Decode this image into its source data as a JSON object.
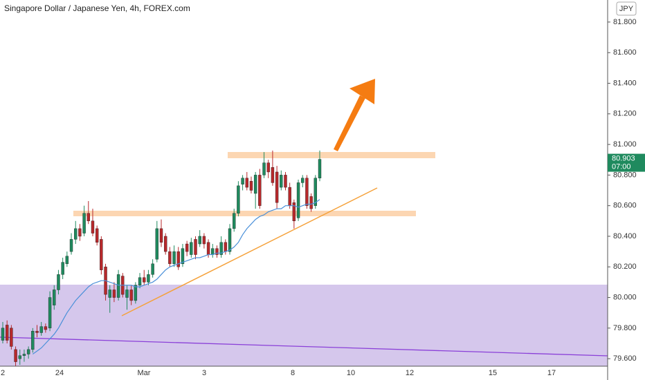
{
  "chart_data": {
    "type": "candlestick",
    "title": "Singapore Dollar / Japanese Yen, 4h, FOREX.com",
    "currency": "JPY",
    "countdown": "07:00",
    "x_labels": [
      "2",
      "24",
      "Mar",
      "3",
      "8",
      "10",
      "12",
      "15",
      "17"
    ],
    "up_color": "#1f8a5e",
    "down_color": "#b8282b",
    "open": [
      79.72,
      79.82,
      79.8,
      79.66,
      79.6,
      79.62,
      79.63,
      79.66,
      79.78,
      79.77,
      79.81,
      79.8,
      79.95,
      80.05,
      80.15,
      80.22,
      80.3,
      80.38,
      80.45,
      80.42,
      80.55,
      80.5,
      80.45,
      80.38,
      80.2,
      80.0,
      80.05,
      80.0,
      80.14,
      80.0,
      80.05,
      79.98,
      80.08,
      80.13,
      80.1,
      80.15,
      80.25,
      80.45,
      80.4,
      80.3,
      80.22,
      80.3,
      80.22,
      80.35,
      80.28,
      80.38,
      80.35,
      80.4,
      80.36,
      80.28,
      80.32,
      80.28,
      80.36,
      80.3,
      80.45,
      80.55,
      80.74,
      80.78,
      80.76,
      80.68,
      80.8,
      80.8,
      80.88,
      80.85,
      80.82,
      80.72,
      80.8,
      80.72,
      80.62,
      80.52,
      80.75,
      80.78,
      80.66,
      80.6,
      80.78
    ],
    "high": [
      79.84,
      79.85,
      79.82,
      79.68,
      79.66,
      79.66,
      79.68,
      79.8,
      79.82,
      79.84,
      79.83,
      80.04,
      80.08,
      80.18,
      80.26,
      80.3,
      80.42,
      80.5,
      80.48,
      80.6,
      80.63,
      80.58,
      80.47,
      80.4,
      80.22,
      80.08,
      80.1,
      80.18,
      80.16,
      80.08,
      80.08,
      80.1,
      80.16,
      80.18,
      80.18,
      80.25,
      80.5,
      80.51,
      80.42,
      80.33,
      80.34,
      80.33,
      80.35,
      80.37,
      80.39,
      80.4,
      80.44,
      80.42,
      80.38,
      80.35,
      80.34,
      80.4,
      80.38,
      80.48,
      80.58,
      80.76,
      80.8,
      80.82,
      80.79,
      80.82,
      80.84,
      80.95,
      80.9,
      80.96,
      80.86,
      80.83,
      80.82,
      80.75,
      80.64,
      80.77,
      80.8,
      80.8,
      80.68,
      80.8,
      80.96
    ],
    "low": [
      79.7,
      79.7,
      79.66,
      79.55,
      79.56,
      79.58,
      79.6,
      79.64,
      79.74,
      79.75,
      79.77,
      79.78,
      79.92,
      80.02,
      80.12,
      80.2,
      80.28,
      80.35,
      80.37,
      80.4,
      80.48,
      80.4,
      80.34,
      80.15,
      79.98,
      79.9,
      79.97,
      79.98,
      80.0,
      79.92,
      79.95,
      79.96,
      80.06,
      80.08,
      80.08,
      80.13,
      80.23,
      80.33,
      80.28,
      80.2,
      80.2,
      80.18,
      80.2,
      80.27,
      80.26,
      80.25,
      80.33,
      80.32,
      80.26,
      80.26,
      80.26,
      80.26,
      80.28,
      80.28,
      80.43,
      80.53,
      80.7,
      80.7,
      80.68,
      80.58,
      80.58,
      80.78,
      80.78,
      80.73,
      80.58,
      80.7,
      80.7,
      80.58,
      80.45,
      80.5,
      80.72,
      80.58,
      80.56,
      80.58,
      80.76
    ],
    "close": [
      79.8,
      79.72,
      79.68,
      79.58,
      79.62,
      79.63,
      79.66,
      79.78,
      79.77,
      79.81,
      79.79,
      80.0,
      80.05,
      80.15,
      80.23,
      80.27,
      80.38,
      80.45,
      80.4,
      80.55,
      80.5,
      80.42,
      80.36,
      80.18,
      80.02,
      80.05,
      80.0,
      80.15,
      80.02,
      80.05,
      79.98,
      80.08,
      80.13,
      80.1,
      80.15,
      80.22,
      80.45,
      80.36,
      80.3,
      80.22,
      80.3,
      80.2,
      80.32,
      80.3,
      80.36,
      80.28,
      80.4,
      80.35,
      80.28,
      80.32,
      80.28,
      80.36,
      80.3,
      80.45,
      80.55,
      80.73,
      80.78,
      80.72,
      80.7,
      80.8,
      80.6,
      80.88,
      80.82,
      80.75,
      80.62,
      80.8,
      80.72,
      80.6,
      80.5,
      80.75,
      80.78,
      80.6,
      80.58,
      80.78,
      80.903
    ],
    "ma": {
      "color": "#4a90d9",
      "values": [
        null,
        null,
        null,
        null,
        null,
        null,
        null,
        79.63,
        79.65,
        79.67,
        79.7,
        79.73,
        79.76,
        79.8,
        79.85,
        79.9,
        79.94,
        79.98,
        80.01,
        80.04,
        80.07,
        80.09,
        80.1,
        80.11,
        80.11,
        80.1,
        80.09,
        80.08,
        80.08,
        80.08,
        80.08,
        80.07,
        80.07,
        80.08,
        80.09,
        80.1,
        80.12,
        80.15,
        80.18,
        80.2,
        80.21,
        80.22,
        80.23,
        80.24,
        80.25,
        80.26,
        80.26,
        80.27,
        80.28,
        80.28,
        80.29,
        80.29,
        80.3,
        80.31,
        80.33,
        80.36,
        80.41,
        80.45,
        80.48,
        80.51,
        80.53,
        80.54,
        80.56,
        80.57,
        80.58,
        80.58,
        80.6,
        80.6,
        80.6,
        80.59,
        80.6,
        80.61,
        80.61,
        80.62,
        80.64
      ]
    },
    "ylim": [
      79.551,
      81.944
    ],
    "yticks": [
      {
        "value": 79.6,
        "label": "79.600"
      },
      {
        "value": 79.8,
        "label": "79.800"
      },
      {
        "value": 80.0,
        "label": "80.000"
      },
      {
        "value": 80.2,
        "label": "80.200"
      },
      {
        "value": 80.4,
        "label": "80.400"
      },
      {
        "value": 80.6,
        "label": "80.600"
      },
      {
        "value": 80.8,
        "label": "80.800"
      },
      {
        "value": 81.0,
        "label": "81.000"
      },
      {
        "value": 81.2,
        "label": "81.200"
      },
      {
        "value": 81.4,
        "label": "81.400"
      },
      {
        "value": 81.6,
        "label": "81.600"
      },
      {
        "value": 81.8,
        "label": "81.800"
      }
    ]
  }
}
